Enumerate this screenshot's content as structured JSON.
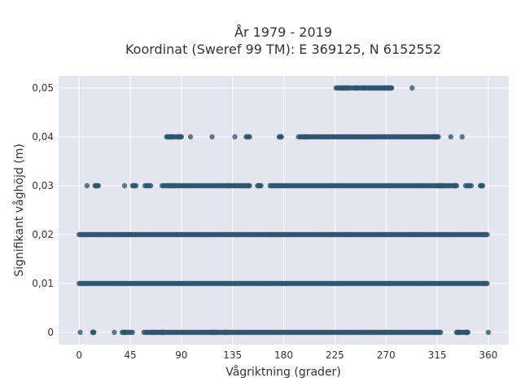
{
  "chart_data": {
    "type": "scatter",
    "title_line1": "År 1979 - 2019",
    "title_line2": "Koordinat (Sweref 99 TM): E 369125, N 6152552",
    "xlabel": "Vågriktning (grader)",
    "ylabel": "Signifikant våghöjd (m)",
    "xlim": [
      -18,
      378
    ],
    "ylim": [
      -0.0025,
      0.0525
    ],
    "x_ticks": [
      0,
      45,
      90,
      135,
      180,
      225,
      270,
      315,
      360
    ],
    "x_tick_labels": [
      "0",
      "45",
      "90",
      "135",
      "180",
      "225",
      "270",
      "315",
      "360"
    ],
    "y_ticks": [
      0,
      0.01,
      0.02,
      0.03,
      0.04,
      0.05
    ],
    "y_tick_labels": [
      "0",
      "0,01",
      "0,02",
      "0,03",
      "0,04",
      "0,05"
    ],
    "grid": true,
    "marker_color": "#2f5670",
    "background_color": "#e5e5ef",
    "series": [
      {
        "values": [
          {
            "y": 0.05,
            "x": [
              226,
              230,
              232,
              235,
              237,
              243,
              245,
              250,
              252,
              256,
              260,
              262,
              265,
              268,
              270,
              273,
              275,
              293
            ]
          },
          {
            "y": 0.04,
            "x": [
              77,
              80,
              83,
              88,
              90,
              98,
              117,
              137,
              147,
              150,
              176,
              178,
              193,
              198,
              200,
              205,
              210,
              215,
              220,
              225,
              230,
              235,
              240,
              245,
              250,
              255,
              260,
              265,
              270,
              275,
              280,
              285,
              290,
              295,
              300,
              305,
              310,
              313,
              316,
              327,
              337
            ]
          },
          {
            "y": 0.03,
            "x": [
              7,
              14,
              17,
              40,
              47,
              50,
              58,
              63,
              73,
              78,
              82,
              85,
              90,
              95,
              100,
              105,
              110,
              115,
              120,
              125,
              130,
              133,
              137,
              142,
              147,
              150,
              157,
              160,
              168,
              172,
              176,
              180,
              185,
              190,
              195,
              200,
              205,
              210,
              215,
              220,
              225,
              230,
              235,
              240,
              245,
              250,
              255,
              260,
              265,
              270,
              275,
              280,
              285,
              290,
              295,
              300,
              305,
              310,
              315,
              318,
              320,
              325,
              330,
              332,
              340,
              345,
              353,
              355
            ]
          },
          {
            "y": 0.02,
            "x": [
              0,
              5,
              10,
              15,
              20,
              25,
              30,
              35,
              40,
              45,
              50,
              55,
              60,
              65,
              70,
              75,
              80,
              85,
              90,
              95,
              100,
              105,
              110,
              115,
              120,
              125,
              130,
              135,
              140,
              145,
              150,
              155,
              160,
              165,
              170,
              175,
              180,
              185,
              190,
              195,
              200,
              205,
              210,
              215,
              220,
              225,
              230,
              235,
              240,
              245,
              250,
              255,
              260,
              265,
              270,
              275,
              280,
              285,
              290,
              295,
              300,
              305,
              310,
              315,
              320,
              325,
              330,
              335,
              340,
              345,
              350,
              355,
              359
            ]
          },
          {
            "y": 0.01,
            "x": [
              0,
              5,
              10,
              15,
              20,
              25,
              30,
              35,
              40,
              45,
              50,
              55,
              60,
              65,
              70,
              75,
              80,
              85,
              90,
              95,
              100,
              105,
              110,
              115,
              120,
              125,
              130,
              135,
              140,
              145,
              150,
              155,
              160,
              165,
              170,
              175,
              180,
              185,
              190,
              195,
              200,
              205,
              210,
              215,
              220,
              225,
              230,
              235,
              240,
              245,
              250,
              255,
              260,
              265,
              270,
              275,
              280,
              285,
              290,
              295,
              300,
              305,
              310,
              315,
              320,
              325,
              330,
              335,
              340,
              345,
              350,
              355,
              359
            ]
          },
          {
            "y": 0.0,
            "x": [
              1,
              12,
              13,
              31,
              38,
              41,
              47,
              57,
              63,
              67,
              72,
              75,
              80,
              85,
              90,
              95,
              100,
              105,
              110,
              115,
              118,
              121,
              127,
              130,
              135,
              140,
              145,
              150,
              155,
              160,
              165,
              170,
              175,
              180,
              185,
              190,
              195,
              200,
              205,
              210,
              215,
              220,
              225,
              230,
              235,
              240,
              245,
              250,
              255,
              260,
              265,
              270,
              275,
              280,
              285,
              290,
              295,
              300,
              305,
              310,
              314,
              318,
              332,
              335,
              340,
              342,
              360
            ]
          }
        ]
      }
    ]
  }
}
